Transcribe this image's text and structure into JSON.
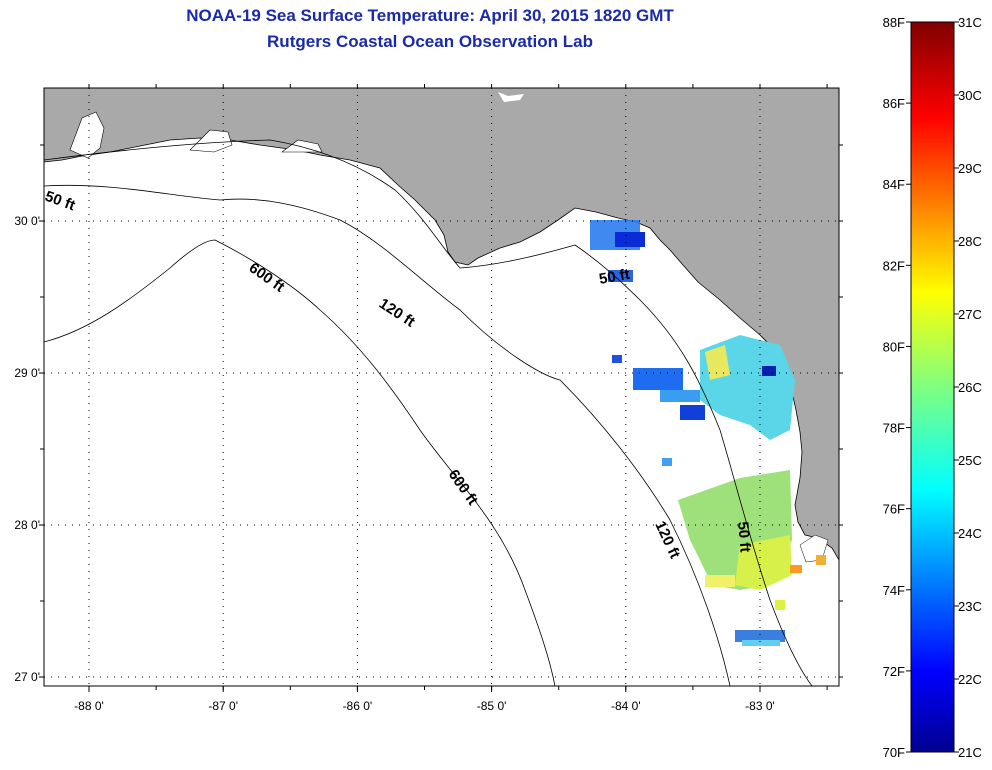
{
  "header": {
    "title": "NOAA-19 Sea Surface Temperature:  April 30, 2015 1820 GMT",
    "subtitle": "Rutgers Coastal Ocean Observation Lab"
  },
  "map": {
    "lat_ticks": [
      {
        "lat": 30,
        "label": "30 0'"
      },
      {
        "lat": 29,
        "label": "29 0'"
      },
      {
        "lat": 28,
        "label": "28 0'"
      },
      {
        "lat": 27,
        "label": "27 0'"
      }
    ],
    "lon_ticks": [
      {
        "lon": -88,
        "label": "-88 0'"
      },
      {
        "lon": -87,
        "label": "-87 0'"
      },
      {
        "lon": -86,
        "label": "-86 0'"
      },
      {
        "lon": -85,
        "label": "-85 0'"
      },
      {
        "lon": -84,
        "label": "-84 0'"
      },
      {
        "lon": -83,
        "label": "-83 0'"
      }
    ],
    "contour_labels": [
      "50 ft",
      "600 ft",
      "120 ft",
      "50 ft",
      "600 ft",
      "120 ft",
      "50 ft"
    ],
    "colors": {
      "land": "#a9a9a9",
      "water": "#ffffff",
      "frame": "#000000"
    }
  },
  "colorbar": {
    "fahrenheit_labels": [
      "88F",
      "86F",
      "84F",
      "82F",
      "80F",
      "78F",
      "76F",
      "74F",
      "72F",
      "70F"
    ],
    "celsius_labels": [
      "31C",
      "30C",
      "29C",
      "28C",
      "27C",
      "26C",
      "25C",
      "24C",
      "23C",
      "22C",
      "21C"
    ],
    "range_f": [
      70,
      88
    ],
    "range_c": [
      21,
      31
    ]
  }
}
